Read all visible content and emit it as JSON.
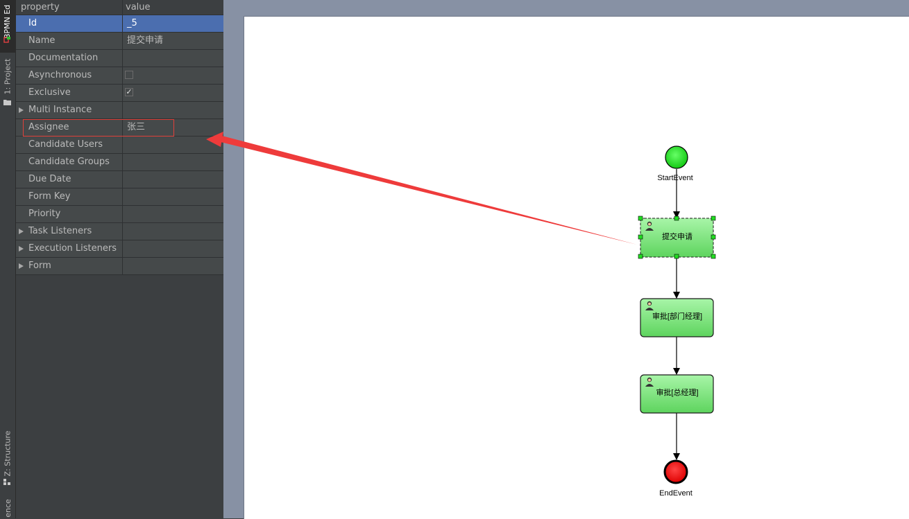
{
  "toolstrip": {
    "tabs": [
      {
        "label": "BPMN Ed",
        "icon": "bpmn-icon",
        "active": true
      },
      {
        "label": "1: Project",
        "icon": "folder-icon",
        "active": false
      },
      {
        "label": "Z: Structure",
        "icon": "structure-icon",
        "active": false
      },
      {
        "label": "ence",
        "icon": "",
        "active": false
      }
    ]
  },
  "properties": {
    "header": {
      "property": "property",
      "value": "value"
    },
    "rows": [
      {
        "name": "Id",
        "value": "_5",
        "type": "text",
        "selected": true
      },
      {
        "name": "Name",
        "value": "提交申请",
        "type": "text"
      },
      {
        "name": "Documentation",
        "value": "",
        "type": "text"
      },
      {
        "name": "Asynchronous",
        "value": "",
        "type": "checkbox",
        "checked": false
      },
      {
        "name": "Exclusive",
        "value": "✓",
        "type": "checkbox",
        "checked": true
      },
      {
        "name": "Multi Instance",
        "value": "",
        "type": "group"
      },
      {
        "name": "Assignee",
        "value": "张三",
        "type": "text",
        "highlighted": true
      },
      {
        "name": "Candidate Users",
        "value": "",
        "type": "text"
      },
      {
        "name": "Candidate Groups",
        "value": "",
        "type": "text"
      },
      {
        "name": "Due Date",
        "value": "",
        "type": "text"
      },
      {
        "name": "Form Key",
        "value": "",
        "type": "text"
      },
      {
        "name": "Priority",
        "value": "",
        "type": "text"
      },
      {
        "name": "Task Listeners",
        "value": "",
        "type": "group"
      },
      {
        "name": "Execution Listeners",
        "value": "",
        "type": "group"
      },
      {
        "name": "Form",
        "value": "",
        "type": "group"
      }
    ]
  },
  "diagram": {
    "start_event": {
      "label": "StartEvent",
      "color": "#22dd22"
    },
    "tasks": [
      {
        "label": "提交申请",
        "selected": true
      },
      {
        "label": "审批[部门经理]",
        "selected": false
      },
      {
        "label": "审批[总经理]",
        "selected": false
      }
    ],
    "end_event": {
      "label": "EndEvent",
      "color": "#ee1111"
    },
    "task_color": "#7fe07f",
    "annotation_arrow_color": "#ee3b3b"
  }
}
